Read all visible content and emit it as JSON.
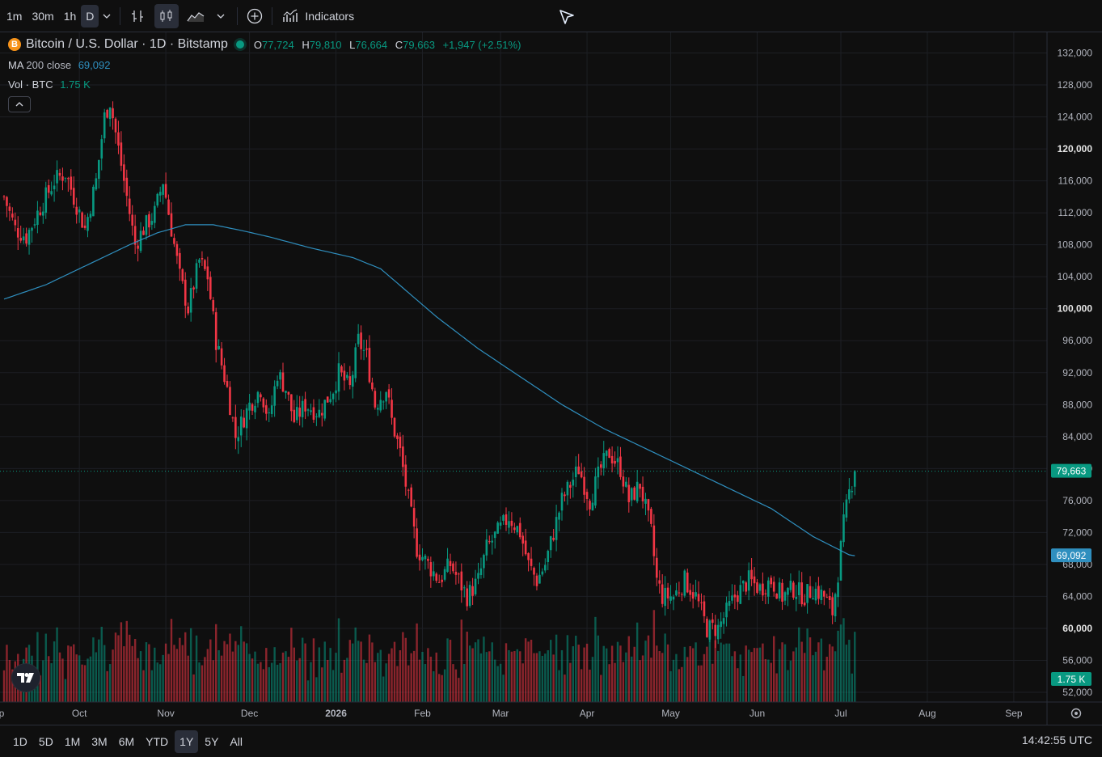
{
  "toolbar": {
    "intervals": [
      {
        "label": "1m",
        "active": false
      },
      {
        "label": "30m",
        "active": false
      },
      {
        "label": "1h",
        "active": false
      },
      {
        "label": "D",
        "active": true
      }
    ],
    "indicators_label": "Indicators",
    "icons": [
      "chevron-down-icon",
      "bar-chart-icon",
      "candles-icon",
      "area-chart-icon",
      "chevron-down-icon",
      "add-circle-icon",
      "indicators-icon"
    ]
  },
  "legend": {
    "symbol": "Bitcoin / U.S. Dollar · 1D · Bitstamp",
    "coin_letter": "B",
    "o_label": "O",
    "o_value": "77,724",
    "h_label": "H",
    "h_value": "79,810",
    "l_label": "L",
    "l_value": "76,664",
    "c_label": "C",
    "c_value": "79,663",
    "change": "+1,947 (+2.51%)",
    "ma_label": "MA",
    "ma_param": "200 close",
    "ma_value": "69,092",
    "vol_label": "Vol · BTC",
    "vol_value": "1.75 K"
  },
  "bottombar": {
    "ranges": [
      {
        "label": "1D",
        "active": false
      },
      {
        "label": "5D",
        "active": false
      },
      {
        "label": "1M",
        "active": false
      },
      {
        "label": "3M",
        "active": false
      },
      {
        "label": "6M",
        "active": false
      },
      {
        "label": "YTD",
        "active": false
      },
      {
        "label": "1Y",
        "active": true
      },
      {
        "label": "5Y",
        "active": false
      },
      {
        "label": "All",
        "active": false
      }
    ],
    "clock": "14:42:55 UTC"
  },
  "colors": {
    "up": "#089981",
    "down": "#f23645",
    "ma": "#2f8fbf",
    "grid": "#1d1f24",
    "bg": "#0f0f0f",
    "text": "#b2b5be"
  },
  "chart_data": {
    "type": "candlestick",
    "y_axis": {
      "min": 50000,
      "max": 134000,
      "ticks": [
        "132,000",
        "128,000",
        "124,000",
        "120,000",
        "116,000",
        "112,000",
        "108,000",
        "104,000",
        "100,000",
        "96,000",
        "92,000",
        "88,000",
        "84,000",
        "80,000",
        "76,000",
        "72,000",
        "68,000",
        "64,000",
        "60,000",
        "56,000",
        "52,000"
      ],
      "tick_values": [
        132000,
        128000,
        124000,
        120000,
        116000,
        112000,
        108000,
        104000,
        100000,
        96000,
        92000,
        88000,
        84000,
        80000,
        76000,
        72000,
        68000,
        64000,
        60000,
        56000,
        52000
      ],
      "bold_ticks": [
        "120,000",
        "100,000",
        "80,000",
        "60,000"
      ]
    },
    "x_axis": {
      "labels": [
        "Sep",
        "Oct",
        "Nov",
        "Dec",
        "2026",
        "Feb",
        "Mar",
        "Apr",
        "May",
        "Jun",
        "Jul",
        "Aug",
        "Sep"
      ],
      "label_day_index": [
        -3,
        27,
        58,
        88,
        119,
        150,
        178,
        209,
        239,
        270,
        300,
        331,
        362
      ],
      "bold_labels": [
        "2026"
      ]
    },
    "price_label": "79,663",
    "price_value": 79663,
    "ma_label": "69,092",
    "ma_value": 69092,
    "vol_label": "1.75 K",
    "anchors": [
      [
        0,
        114000
      ],
      [
        4,
        110000
      ],
      [
        8,
        109000
      ],
      [
        12,
        112000
      ],
      [
        18,
        116000
      ],
      [
        22,
        117000
      ],
      [
        26,
        113000
      ],
      [
        29,
        110000
      ],
      [
        33,
        116000
      ],
      [
        36,
        124000
      ],
      [
        38,
        126000
      ],
      [
        40,
        122000
      ],
      [
        44,
        114000
      ],
      [
        47,
        108000
      ],
      [
        50,
        110000
      ],
      [
        54,
        112000
      ],
      [
        57,
        116000
      ],
      [
        60,
        110000
      ],
      [
        63,
        104000
      ],
      [
        66,
        100000
      ],
      [
        70,
        106000
      ],
      [
        73,
        104000
      ],
      [
        76,
        96000
      ],
      [
        80,
        90000
      ],
      [
        83,
        84000
      ],
      [
        88,
        88000
      ],
      [
        92,
        90000
      ],
      [
        95,
        86000
      ],
      [
        98,
        92000
      ],
      [
        101,
        90000
      ],
      [
        104,
        86000
      ],
      [
        108,
        88000
      ],
      [
        113,
        87000
      ],
      [
        118,
        90000
      ],
      [
        120,
        92000
      ],
      [
        124,
        90000
      ],
      [
        127,
        96000
      ],
      [
        130,
        94000
      ],
      [
        133,
        88000
      ],
      [
        137,
        90000
      ],
      [
        139,
        86000
      ],
      [
        142,
        82000
      ],
      [
        145,
        76000
      ],
      [
        148,
        70000
      ],
      [
        152,
        68000
      ],
      [
        156,
        66000
      ],
      [
        160,
        68000
      ],
      [
        163,
        66000
      ],
      [
        166,
        64000
      ],
      [
        170,
        66000
      ],
      [
        173,
        70000
      ],
      [
        177,
        72000
      ],
      [
        181,
        74000
      ],
      [
        185,
        72000
      ],
      [
        188,
        68000
      ],
      [
        191,
        66000
      ],
      [
        194,
        68000
      ],
      [
        197,
        72000
      ],
      [
        200,
        76000
      ],
      [
        203,
        78000
      ],
      [
        206,
        80000
      ],
      [
        210,
        76000
      ],
      [
        214,
        80000
      ],
      [
        217,
        82000
      ],
      [
        221,
        80000
      ],
      [
        224,
        76000
      ],
      [
        228,
        78000
      ],
      [
        232,
        72000
      ],
      [
        234,
        66000
      ],
      [
        236,
        64000
      ],
      [
        240,
        64000
      ],
      [
        244,
        66000
      ],
      [
        248,
        64000
      ],
      [
        252,
        60000
      ],
      [
        256,
        60000
      ],
      [
        259,
        62000
      ],
      [
        262,
        64000
      ],
      [
        267,
        66000
      ],
      [
        271,
        65000
      ],
      [
        275,
        66000
      ],
      [
        279,
        64000
      ],
      [
        283,
        65000
      ],
      [
        287,
        64000
      ],
      [
        290,
        65000
      ],
      [
        294,
        64000
      ],
      [
        297,
        62000
      ],
      [
        299,
        67000
      ],
      [
        301,
        73000
      ],
      [
        303,
        77000
      ],
      [
        305,
        79663
      ]
    ],
    "ma_anchors": [
      [
        0,
        101200
      ],
      [
        15,
        103000
      ],
      [
        30,
        105500
      ],
      [
        45,
        108000
      ],
      [
        55,
        109500
      ],
      [
        65,
        110500
      ],
      [
        75,
        110500
      ],
      [
        85,
        109800
      ],
      [
        95,
        109000
      ],
      [
        110,
        107600
      ],
      [
        125,
        106400
      ],
      [
        135,
        105000
      ],
      [
        140,
        103500
      ],
      [
        155,
        99000
      ],
      [
        170,
        95000
      ],
      [
        185,
        91500
      ],
      [
        200,
        88000
      ],
      [
        215,
        85000
      ],
      [
        230,
        82500
      ],
      [
        245,
        80000
      ],
      [
        260,
        77500
      ],
      [
        275,
        75000
      ],
      [
        290,
        71500
      ],
      [
        303,
        69200
      ],
      [
        305,
        69092
      ]
    ],
    "ohlc_last": {
      "open": 77724,
      "high": 79810,
      "low": 76664,
      "close": 79663
    },
    "ma_period": 200
  }
}
